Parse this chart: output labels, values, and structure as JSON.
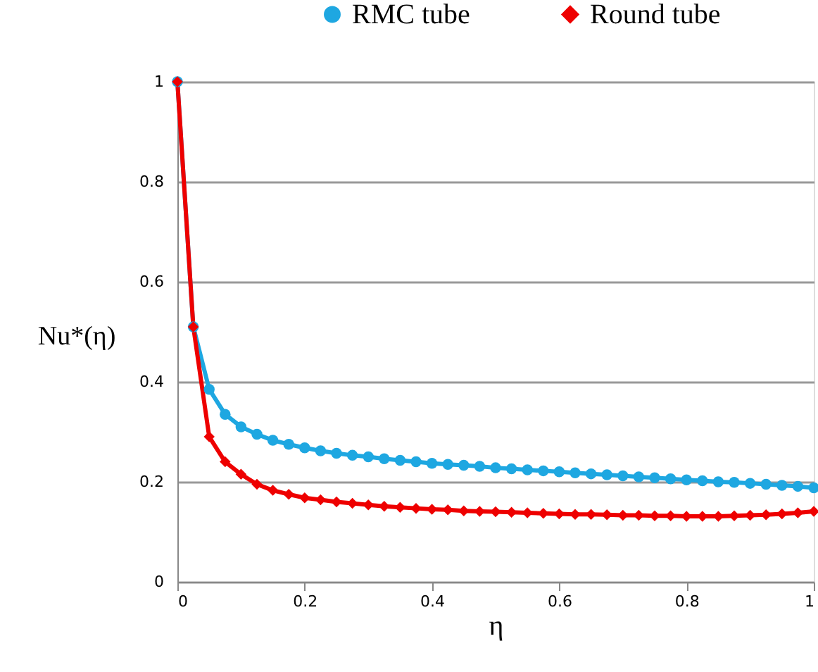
{
  "chart_data": {
    "type": "line",
    "xlabel": "η",
    "ylabel": "Nu*(η)",
    "x": [
      0,
      0.025,
      0.05,
      0.075,
      0.1,
      0.125,
      0.15,
      0.175,
      0.2,
      0.225,
      0.25,
      0.275,
      0.3,
      0.325,
      0.35,
      0.375,
      0.4,
      0.425,
      0.45,
      0.475,
      0.5,
      0.525,
      0.55,
      0.575,
      0.6,
      0.625,
      0.65,
      0.675,
      0.7,
      0.725,
      0.75,
      0.775,
      0.8,
      0.825,
      0.85,
      0.875,
      0.9,
      0.925,
      0.95,
      0.975,
      1
    ],
    "series": [
      {
        "name": "RMC tube",
        "color": "#1ea7e1",
        "marker": "circle",
        "values": [
          1.0,
          0.51,
          0.385,
          0.335,
          0.31,
          0.295,
          0.283,
          0.275,
          0.268,
          0.262,
          0.257,
          0.253,
          0.25,
          0.246,
          0.243,
          0.24,
          0.237,
          0.235,
          0.233,
          0.231,
          0.228,
          0.226,
          0.224,
          0.222,
          0.22,
          0.218,
          0.216,
          0.214,
          0.212,
          0.21,
          0.208,
          0.206,
          0.204,
          0.202,
          0.2,
          0.199,
          0.197,
          0.195,
          0.193,
          0.191,
          0.188
        ]
      },
      {
        "name": "Round tube",
        "color": "#ee0000",
        "marker": "diamond",
        "values": [
          1.0,
          0.51,
          0.29,
          0.24,
          0.215,
          0.195,
          0.183,
          0.175,
          0.168,
          0.164,
          0.16,
          0.157,
          0.154,
          0.151,
          0.149,
          0.147,
          0.145,
          0.144,
          0.142,
          0.141,
          0.14,
          0.139,
          0.138,
          0.137,
          0.136,
          0.135,
          0.135,
          0.134,
          0.133,
          0.133,
          0.132,
          0.132,
          0.131,
          0.131,
          0.131,
          0.132,
          0.133,
          0.134,
          0.136,
          0.138,
          0.141
        ]
      }
    ],
    "xlim": [
      0,
      1
    ],
    "xticks": [
      0,
      0.2,
      0.4,
      0.6,
      0.8,
      1
    ],
    "ylim": [
      0,
      1
    ],
    "yticks": [
      0,
      0.2,
      0.4,
      0.6,
      0.8,
      1
    ],
    "grid": "y",
    "legend": "top",
    "line_style": "solid"
  }
}
